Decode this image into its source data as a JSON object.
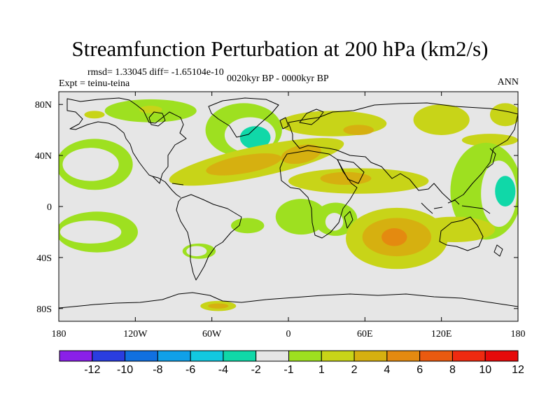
{
  "title": "Streamfunction Perturbation at 200 hPa (km2/s)",
  "stats_line": "rmsd= 1.33045  diff= -1.65104e-10",
  "expt_line": "Expt = teinu-teina",
  "period_line": "0020kyr BP - 0000kyr BP",
  "season": "ANN",
  "colors": {
    "land_outline": "#000000",
    "background": "#ffffff",
    "neutral": "#e6e6e6"
  },
  "chart_data": {
    "type": "heatmap",
    "title": "Streamfunction Perturbation at 200 hPa (km2/s)",
    "projection": "cylindrical-equidistant",
    "xlim": [
      -180,
      180
    ],
    "ylim": [
      -90,
      90
    ],
    "x_ticks": [
      {
        "value": -180,
        "label": "180"
      },
      {
        "value": -120,
        "label": "120W"
      },
      {
        "value": -60,
        "label": "60W"
      },
      {
        "value": 0,
        "label": "0"
      },
      {
        "value": 60,
        "label": "60E"
      },
      {
        "value": 120,
        "label": "120E"
      },
      {
        "value": 180,
        "label": "180"
      }
    ],
    "y_ticks": [
      {
        "value": 80,
        "label": "80N"
      },
      {
        "value": 40,
        "label": "40N"
      },
      {
        "value": 0,
        "label": "0"
      },
      {
        "value": -40,
        "label": "40S"
      },
      {
        "value": -80,
        "label": "80S"
      }
    ],
    "colorbar": {
      "boundaries": [
        "-12",
        "-10",
        "-8",
        "-6",
        "-4",
        "-2",
        "-1",
        "1",
        "2",
        "4",
        "6",
        "8",
        "10",
        "12"
      ],
      "colors": [
        "#8a20e8",
        "#2a3de0",
        "#1170e0",
        "#10a0e8",
        "#12c8e0",
        "#10d8a8",
        "#e6e6e6",
        "#9ee020",
        "#c8d418",
        "#d6b010",
        "#e48a10",
        "#ea5a10",
        "#ee2a10",
        "#e60a0a"
      ]
    },
    "contours": [
      {
        "value": -1,
        "lon": -108,
        "lat": 75,
        "rx": 36,
        "ry": 9
      },
      {
        "value": 1,
        "lon": -108,
        "lat": 76,
        "rx": 9,
        "ry": 3
      },
      {
        "value": 1,
        "lon": -152,
        "lat": 72,
        "rx": 8,
        "ry": 3
      },
      {
        "value": -1,
        "lon": -35,
        "lat": 60,
        "rx": 30,
        "ry": 21
      },
      {
        "value": -2,
        "lon": -30,
        "lat": 56,
        "rx": 20,
        "ry": 14
      },
      {
        "value": -4,
        "lon": -26,
        "lat": 54,
        "rx": 12,
        "ry": 9
      },
      {
        "value": 1,
        "lon": 35,
        "lat": 65,
        "rx": 42,
        "ry": 10
      },
      {
        "value": 2,
        "lon": 55,
        "lat": 60,
        "rx": 12,
        "ry": 4
      },
      {
        "value": 1,
        "lon": -25,
        "lat": 35,
        "rx": 70,
        "ry": 12,
        "rot": -12
      },
      {
        "value": 2,
        "lon": -35,
        "lat": 33,
        "rx": 30,
        "ry": 7,
        "rot": -10
      },
      {
        "value": 2,
        "lon": 10,
        "lat": 41,
        "rx": 16,
        "ry": 7,
        "rot": -12
      },
      {
        "value": 1,
        "lon": 120,
        "lat": 68,
        "rx": 22,
        "ry": 12
      },
      {
        "value": 1,
        "lon": 170,
        "lat": 72,
        "rx": 12,
        "ry": 9
      },
      {
        "value": 1,
        "lon": 158,
        "lat": 52,
        "rx": 22,
        "ry": 5
      },
      {
        "value": -1,
        "lon": -152,
        "lat": 33,
        "rx": 30,
        "ry": 20
      },
      {
        "value": -2,
        "lon": -155,
        "lat": 33,
        "rx": 22,
        "ry": 13
      },
      {
        "value": 1,
        "lon": 55,
        "lat": 20,
        "rx": 55,
        "ry": 10
      },
      {
        "value": 2,
        "lon": 45,
        "lat": 22,
        "rx": 20,
        "ry": 5
      },
      {
        "value": -1,
        "lon": 10,
        "lat": -8,
        "rx": 20,
        "ry": 14
      },
      {
        "value": -1,
        "lon": 37,
        "lat": -10,
        "rx": 17,
        "ry": 13
      },
      {
        "value": -2,
        "lon": 36,
        "lat": -12,
        "rx": 7,
        "ry": 7
      },
      {
        "value": -1,
        "lon": 155,
        "lat": 12,
        "rx": 28,
        "ry": 38
      },
      {
        "value": -2,
        "lon": 165,
        "lat": 10,
        "rx": 14,
        "ry": 26
      },
      {
        "value": -4,
        "lon": 170,
        "lat": 12,
        "rx": 8,
        "ry": 12
      },
      {
        "value": 1,
        "lon": 130,
        "lat": -18,
        "rx": 32,
        "ry": 10
      },
      {
        "value": 1,
        "lon": 85,
        "lat": -25,
        "rx": 40,
        "ry": 24
      },
      {
        "value": 2,
        "lon": 85,
        "lat": -24,
        "rx": 27,
        "ry": 15
      },
      {
        "value": 4,
        "lon": 83,
        "lat": -24,
        "rx": 10,
        "ry": 7
      },
      {
        "value": -1,
        "lon": -150,
        "lat": -20,
        "rx": 32,
        "ry": 16
      },
      {
        "value": -2,
        "lon": -155,
        "lat": -20,
        "rx": 24,
        "ry": 9
      },
      {
        "value": -1,
        "lon": -32,
        "lat": -15,
        "rx": 13,
        "ry": 6
      },
      {
        "value": -1,
        "lon": -70,
        "lat": -35,
        "rx": 13,
        "ry": 6
      },
      {
        "value": -2,
        "lon": -72,
        "lat": -35,
        "rx": 8,
        "ry": 4
      },
      {
        "value": 1,
        "lon": -55,
        "lat": -78,
        "rx": 14,
        "ry": 4
      },
      {
        "value": 2,
        "lon": -55,
        "lat": -78,
        "rx": 8,
        "ry": 2
      }
    ]
  }
}
